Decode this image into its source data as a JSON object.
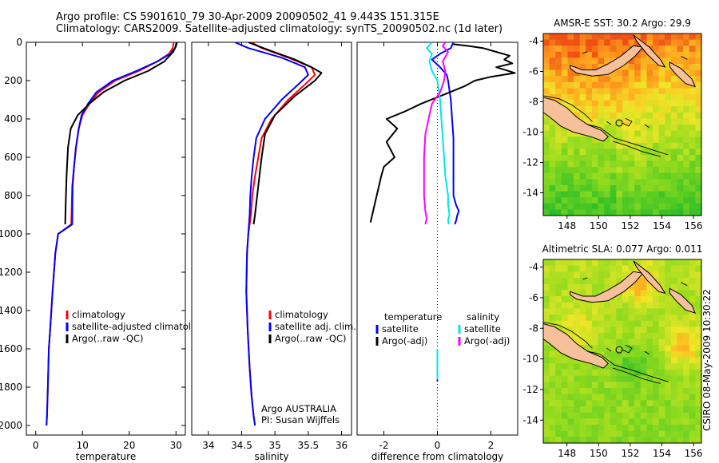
{
  "header": {
    "line1": "Argo profile: CS 5901610_79 30-Apr-2009 20090502_41 9.443S 151.315E",
    "line2": "Climatology: CARS2009. Satellite-adjusted climatology: synTS_20090502.nc (1d later)"
  },
  "stamp": "CSIRO 08-May-2009 10:30:22",
  "colors": {
    "climatology": "#ff0000",
    "satellite": "#0000ff",
    "argo": "#000000",
    "sat_diff": "#00e5ee",
    "argo_sal_diff": "#ff00ff",
    "land": "#f6c09a",
    "coast": "#000000"
  },
  "chart_data": [
    {
      "id": "temperature",
      "type": "line",
      "xlabel": "temperature",
      "ylabel": "",
      "xlim": [
        -2,
        32
      ],
      "ylim": [
        2050,
        0
      ],
      "xticks": [
        0,
        10,
        20,
        30
      ],
      "yticks": [
        0,
        200,
        400,
        600,
        800,
        1000,
        1200,
        1400,
        1600,
        1800,
        2000
      ],
      "legend": [
        "climatology",
        "satellite-adjusted climatology",
        "Argo(..raw -QC)"
      ],
      "series": [
        {
          "name": "climatology",
          "color": "#ff0000",
          "x": [
            29.5,
            29.3,
            28.5,
            26,
            22,
            17,
            13.5,
            11.5,
            10,
            9.2,
            8.6,
            8.2,
            7.8,
            7.6,
            4.8,
            4.2,
            3.6,
            3.1,
            2.8,
            2.6,
            2.4,
            2.3
          ],
          "y": [
            0,
            30,
            60,
            100,
            150,
            200,
            260,
            320,
            380,
            450,
            550,
            650,
            750,
            950,
            1000,
            1100,
            1300,
            1500,
            1600,
            1800,
            1950,
            2000
          ]
        },
        {
          "name": "satellite-adjusted climatology",
          "color": "#0000ff",
          "x": [
            30.1,
            29.8,
            28.8,
            26,
            21.5,
            16.5,
            13,
            11.2,
            9.8,
            9.2,
            8.6,
            8.2,
            7.9,
            7.8,
            4.8,
            4.2,
            3.6,
            3.1,
            2.8,
            2.6,
            2.4,
            2.3
          ],
          "y": [
            0,
            30,
            60,
            100,
            150,
            200,
            260,
            320,
            380,
            450,
            550,
            650,
            750,
            950,
            1000,
            1100,
            1300,
            1500,
            1600,
            1800,
            1950,
            2000
          ]
        },
        {
          "name": "Argo(..raw -QC)",
          "color": "#000000",
          "x": [
            30.2,
            30,
            29.4,
            27.5,
            24,
            19,
            14.5,
            11.5,
            9,
            7.5,
            6.9,
            6.6,
            6.4,
            6.3
          ],
          "y": [
            0,
            20,
            50,
            100,
            150,
            200,
            260,
            320,
            380,
            450,
            550,
            700,
            850,
            950
          ]
        }
      ]
    },
    {
      "id": "salinity",
      "type": "line",
      "xlabel": "salinity",
      "ylabel": "",
      "xlim": [
        33.75,
        36.15
      ],
      "ylim": [
        2050,
        0
      ],
      "xticks": [
        34,
        34.5,
        35,
        35.5,
        36
      ],
      "xticklabels": [
        "34",
        "34.5",
        "35",
        "35.5",
        "36"
      ],
      "legend": [
        "climatology",
        "satellite adj. clim.",
        "Argo(..raw -QC)"
      ],
      "annotations": [
        "Argo AUSTRALIA",
        "PI: Susan Wijffels"
      ],
      "series": [
        {
          "name": "climatology",
          "color": "#ff0000",
          "x": [
            34.65,
            34.8,
            35.2,
            35.55,
            35.6,
            35.45,
            35.2,
            34.95,
            34.8,
            34.75,
            34.7,
            34.66,
            34.64,
            34.62,
            34.6,
            34.58,
            34.57,
            34.59,
            34.62,
            34.65,
            34.68,
            34.7
          ],
          "y": [
            0,
            30,
            80,
            130,
            170,
            220,
            300,
            400,
            500,
            600,
            700,
            800,
            900,
            950,
            1000,
            1100,
            1300,
            1500,
            1700,
            1850,
            1950,
            2000
          ]
        },
        {
          "name": "satellite adj. clim.",
          "color": "#0000ff",
          "x": [
            34.4,
            34.6,
            35.1,
            35.45,
            35.5,
            35.35,
            35.1,
            34.85,
            34.72,
            34.68,
            34.65,
            34.63,
            34.62,
            34.61,
            34.6,
            34.58,
            34.57,
            34.59,
            34.62,
            34.65,
            34.68,
            34.7
          ],
          "y": [
            0,
            30,
            80,
            130,
            170,
            220,
            300,
            400,
            500,
            600,
            700,
            800,
            900,
            950,
            1000,
            1100,
            1300,
            1500,
            1700,
            1850,
            1950,
            2000
          ]
        },
        {
          "name": "Argo(..raw -QC)",
          "color": "#000000",
          "x": [
            34.6,
            34.9,
            35.3,
            35.55,
            35.7,
            35.6,
            35.3,
            35.0,
            34.85,
            34.8,
            34.75,
            34.7,
            34.68
          ],
          "y": [
            0,
            40,
            90,
            130,
            160,
            200,
            280,
            380,
            480,
            600,
            750,
            900,
            950
          ]
        }
      ]
    },
    {
      "id": "difference",
      "type": "line",
      "xlabel": "difference from climatology",
      "ylabel": "",
      "xlim": [
        -3,
        3
      ],
      "ylim": [
        2050,
        0
      ],
      "xticks": [
        -2,
        0,
        2
      ],
      "legend": [
        "temperature",
        "satellite",
        "Argo(-adj)",
        "salinity",
        "satellite",
        "Argo(-adj)"
      ],
      "series": [
        {
          "name": "temperature satellite",
          "color": "#0000ff",
          "x": [
            0.6,
            0.5,
            0.1,
            -0.2,
            0.1,
            0.35,
            0.4,
            0.45,
            0.5,
            0.55,
            0.6,
            0.6,
            0.6,
            0.6,
            0.7,
            0.8,
            0.75,
            0.7,
            0.65
          ],
          "y": [
            0,
            30,
            60,
            90,
            130,
            170,
            200,
            250,
            300,
            400,
            500,
            600,
            700,
            800,
            850,
            880,
            900,
            930,
            950
          ]
        },
        {
          "name": "temperature Argo(-adj)",
          "color": "#000000",
          "x": [
            0.6,
            1.2,
            1.7,
            2.2,
            2.7,
            2.5,
            2.8,
            2.2,
            2.9,
            2,
            1.4,
            1.0,
            0.3,
            -0.6,
            -1.2,
            -1.9,
            -1.5,
            -1.9,
            -1.6,
            -2.0,
            -2.1,
            -2.2,
            -2.3,
            -2.4,
            -2.5
          ],
          "y": [
            10,
            20,
            30,
            50,
            70,
            90,
            110,
            130,
            160,
            180,
            200,
            230,
            270,
            320,
            360,
            400,
            450,
            520,
            600,
            650,
            700,
            760,
            820,
            880,
            940
          ]
        },
        {
          "name": "salinity satellite",
          "color": "#00e5ee",
          "x": [
            -0.2,
            -0.4,
            -0.2,
            -0.3,
            -0.2,
            0.0,
            0.1,
            0.15,
            0.2,
            0.25,
            0.3,
            0.35,
            0.4,
            0.4,
            0.45,
            0.4,
            0.42
          ],
          "y": [
            0,
            30,
            60,
            100,
            150,
            200,
            300,
            400,
            500,
            600,
            700,
            750,
            800,
            850,
            900,
            930,
            950
          ]
        },
        {
          "name": "salinity Argo(-adj)",
          "color": "#ff00ff",
          "x": [
            0.3,
            0.2,
            0.4,
            0.2,
            0.3,
            0.25,
            0.1,
            -0.2,
            -0.3,
            -0.45,
            -0.5,
            -0.5,
            -0.5,
            -0.45,
            -0.4,
            -0.45
          ],
          "y": [
            0,
            20,
            50,
            100,
            150,
            200,
            260,
            320,
            380,
            480,
            600,
            700,
            800,
            880,
            920,
            950
          ]
        },
        {
          "name": "satellite (deep)",
          "color": "#0000ff",
          "x": [
            0.0,
            0.0
          ],
          "y": [
            1690,
            1770
          ]
        },
        {
          "name": "salinity satellite (deep)",
          "color": "#00e5ee",
          "x": [
            0.0,
            0.0
          ],
          "y": [
            1600,
            1760
          ]
        }
      ]
    },
    {
      "id": "sst_map",
      "type": "heatmap",
      "title": "AMSR-E SST: 30.2 Argo: 29.9",
      "xlim": [
        146.5,
        156.5
      ],
      "ylim": [
        -15.5,
        -3.5
      ],
      "xticks": [
        148,
        150,
        152,
        154,
        156
      ],
      "yticks": [
        -4,
        -6,
        -8,
        -10,
        -12,
        -14
      ]
    },
    {
      "id": "sla_map",
      "type": "heatmap",
      "title": "Altimetric SLA: 0.077 Argo: 0.011",
      "xlim": [
        146.5,
        156.5
      ],
      "ylim": [
        -15.5,
        -3.5
      ],
      "xticks": [
        148,
        150,
        152,
        154,
        156
      ],
      "yticks": [
        -4,
        -6,
        -8,
        -10,
        -12,
        -14
      ]
    }
  ]
}
